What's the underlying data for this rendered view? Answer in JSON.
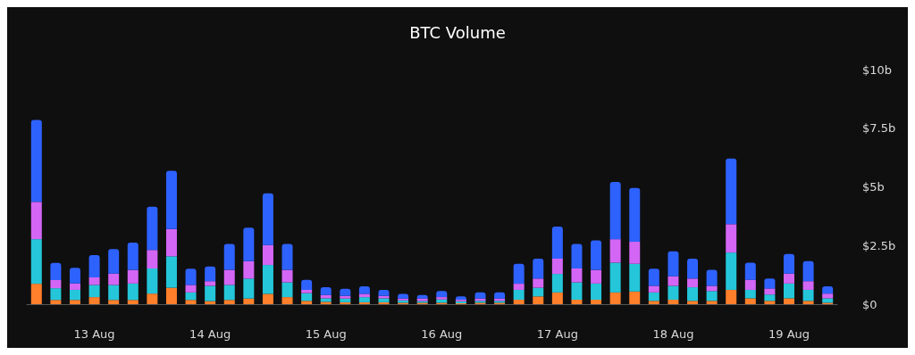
{
  "chart_data": {
    "type": "bar",
    "title": "BTC Volume",
    "stacked": true,
    "grid": false,
    "categories": [
      null,
      null,
      null,
      "13 Aug",
      null,
      null,
      null,
      null,
      null,
      "14 Aug",
      null,
      null,
      null,
      null,
      null,
      "15 Aug",
      null,
      null,
      null,
      null,
      null,
      "16 Aug",
      null,
      null,
      null,
      null,
      null,
      "17 Aug",
      null,
      null,
      null,
      null,
      null,
      "18 Aug",
      null,
      null,
      null,
      null,
      null,
      "19 Aug",
      null,
      null
    ],
    "ylim": [
      0,
      10
    ],
    "yticks": [
      {
        "value": 0,
        "label": "$0"
      },
      {
        "value": 2.5,
        "label": "$2.5b"
      },
      {
        "value": 5,
        "label": "$5b"
      },
      {
        "value": 7.5,
        "label": "$7.5b"
      },
      {
        "value": 10,
        "label": "$10b"
      }
    ],
    "series": [
      {
        "color": "#ff7f2a",
        "values": [
          0.87,
          0.18,
          0.18,
          0.3,
          0.18,
          0.18,
          0.45,
          0.7,
          0.18,
          0.13,
          0.18,
          0.24,
          0.44,
          0.3,
          0.14,
          0.1,
          0.08,
          0.08,
          0.08,
          0.06,
          0.06,
          0.06,
          0.04,
          0.06,
          0.06,
          0.19,
          0.33,
          0.5,
          0.19,
          0.19,
          0.5,
          0.54,
          0.14,
          0.19,
          0.14,
          0.14,
          0.61,
          0.25,
          0.14,
          0.25,
          0.14,
          0.06
        ]
      },
      {
        "color": "#25c6d9",
        "values": [
          1.9,
          0.5,
          0.43,
          0.52,
          0.64,
          0.7,
          1.07,
          1.34,
          0.32,
          0.65,
          0.64,
          0.85,
          1.23,
          0.63,
          0.33,
          0.15,
          0.16,
          0.22,
          0.17,
          0.1,
          0.07,
          0.14,
          0.08,
          0.08,
          0.08,
          0.42,
          0.37,
          0.79,
          0.74,
          0.69,
          1.27,
          1.18,
          0.36,
          0.59,
          0.58,
          0.42,
          1.59,
          0.36,
          0.27,
          0.63,
          0.47,
          0.19
        ]
      },
      {
        "color": "#d466f5",
        "values": [
          1.59,
          0.35,
          0.27,
          0.32,
          0.48,
          0.58,
          0.79,
          1.16,
          0.32,
          0.2,
          0.64,
          0.74,
          0.85,
          0.53,
          0.14,
          0.14,
          0.11,
          0.14,
          0.1,
          0.08,
          0.11,
          0.1,
          0.07,
          0.1,
          0.1,
          0.26,
          0.39,
          0.65,
          0.59,
          0.58,
          1.0,
          0.94,
          0.28,
          0.41,
          0.37,
          0.22,
          1.21,
          0.43,
          0.26,
          0.42,
          0.37,
          0.2
        ]
      },
      {
        "color": "#2e62ff",
        "values": [
          3.49,
          0.73,
          0.67,
          0.95,
          1.05,
          1.16,
          1.84,
          2.48,
          0.69,
          0.63,
          1.11,
          1.43,
          2.2,
          1.11,
          0.43,
          0.33,
          0.31,
          0.32,
          0.26,
          0.2,
          0.15,
          0.26,
          0.14,
          0.26,
          0.26,
          0.85,
          0.85,
          1.37,
          1.05,
          1.26,
          2.44,
          2.29,
          0.73,
          1.06,
          0.85,
          0.68,
          2.8,
          0.73,
          0.42,
          0.84,
          0.85,
          0.31
        ]
      }
    ]
  }
}
